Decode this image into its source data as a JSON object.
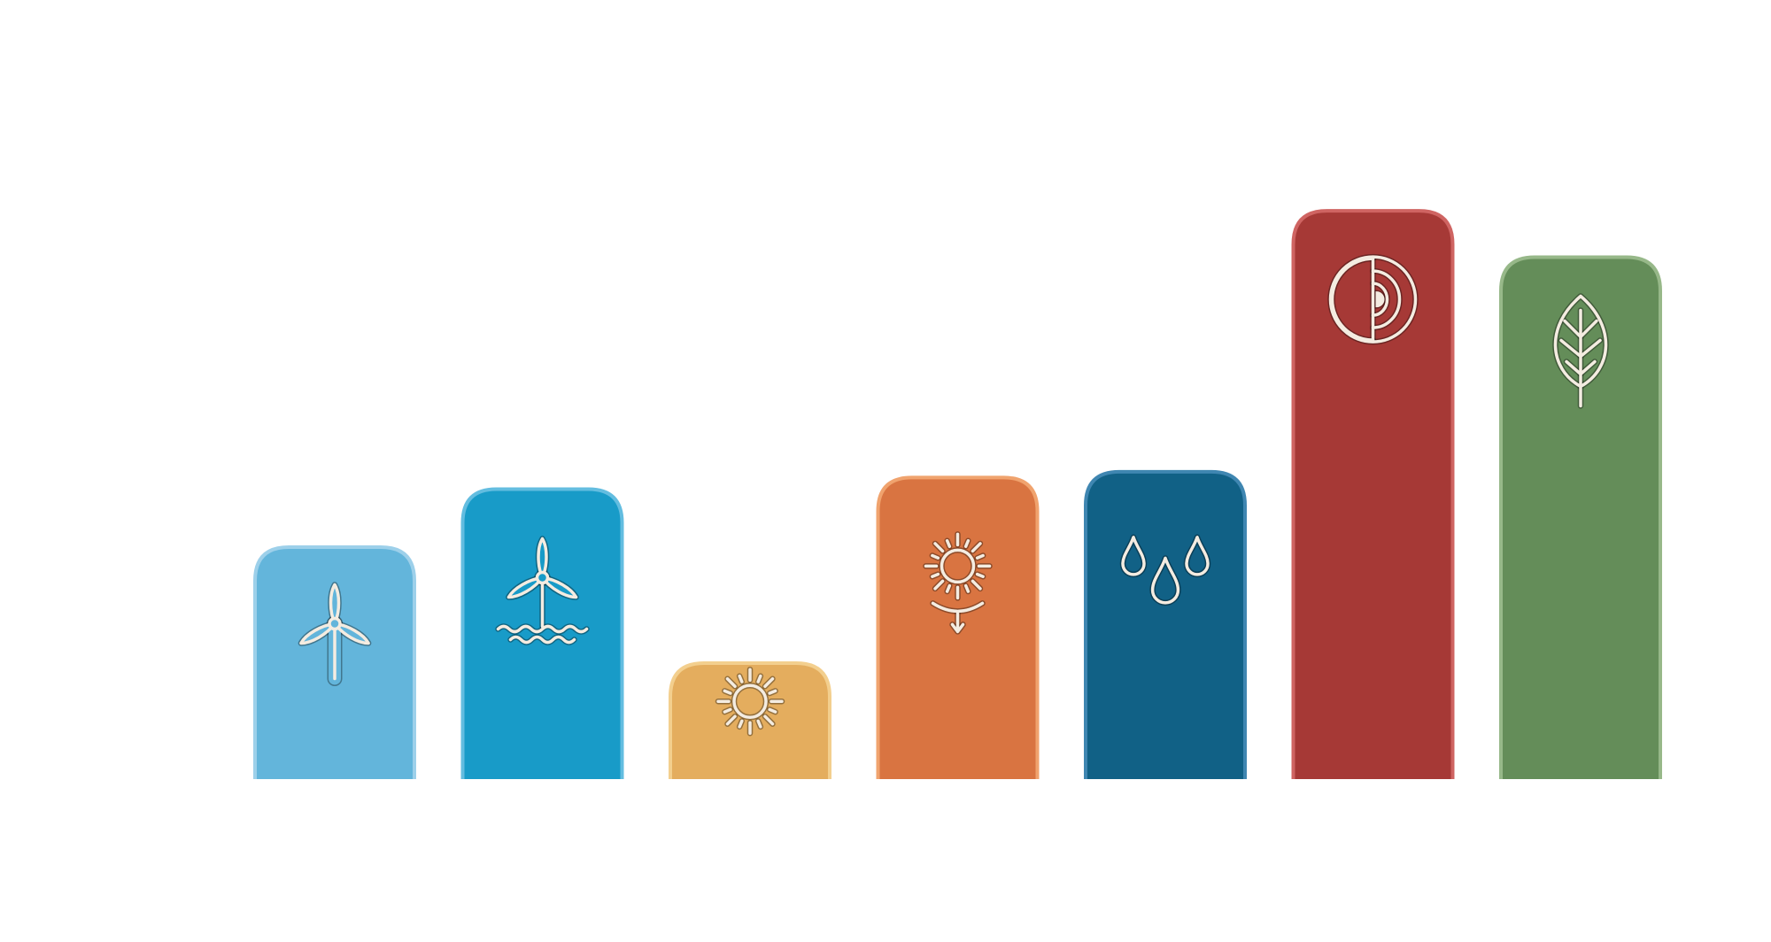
{
  "chart_data": {
    "type": "bar",
    "title": "",
    "xlabel": "",
    "ylabel": "",
    "ylim": [
      0,
      100
    ],
    "grid": false,
    "legend": "none",
    "values": [
      40,
      50,
      20,
      52,
      53,
      98,
      90
    ],
    "colors": [
      "#63b5db",
      "#189bc8",
      "#e4ad5e",
      "#d97441",
      "#116186",
      "#a63936",
      "#648d59"
    ],
    "border_colors": [
      "#9dd0ea",
      "#63bde0",
      "#f3cf8e",
      "#f0a36e",
      "#3f86b1",
      "#cf6462",
      "#97b889"
    ],
    "icons": [
      "onshore-wind-turbine-icon",
      "offshore-wind-turbine-icon",
      "solar-sun-icon",
      "concentrated-solar-icon",
      "hydropower-water-drops-icon",
      "geothermal-earth-core-icon",
      "bioenergy-leaf-icon"
    ]
  }
}
